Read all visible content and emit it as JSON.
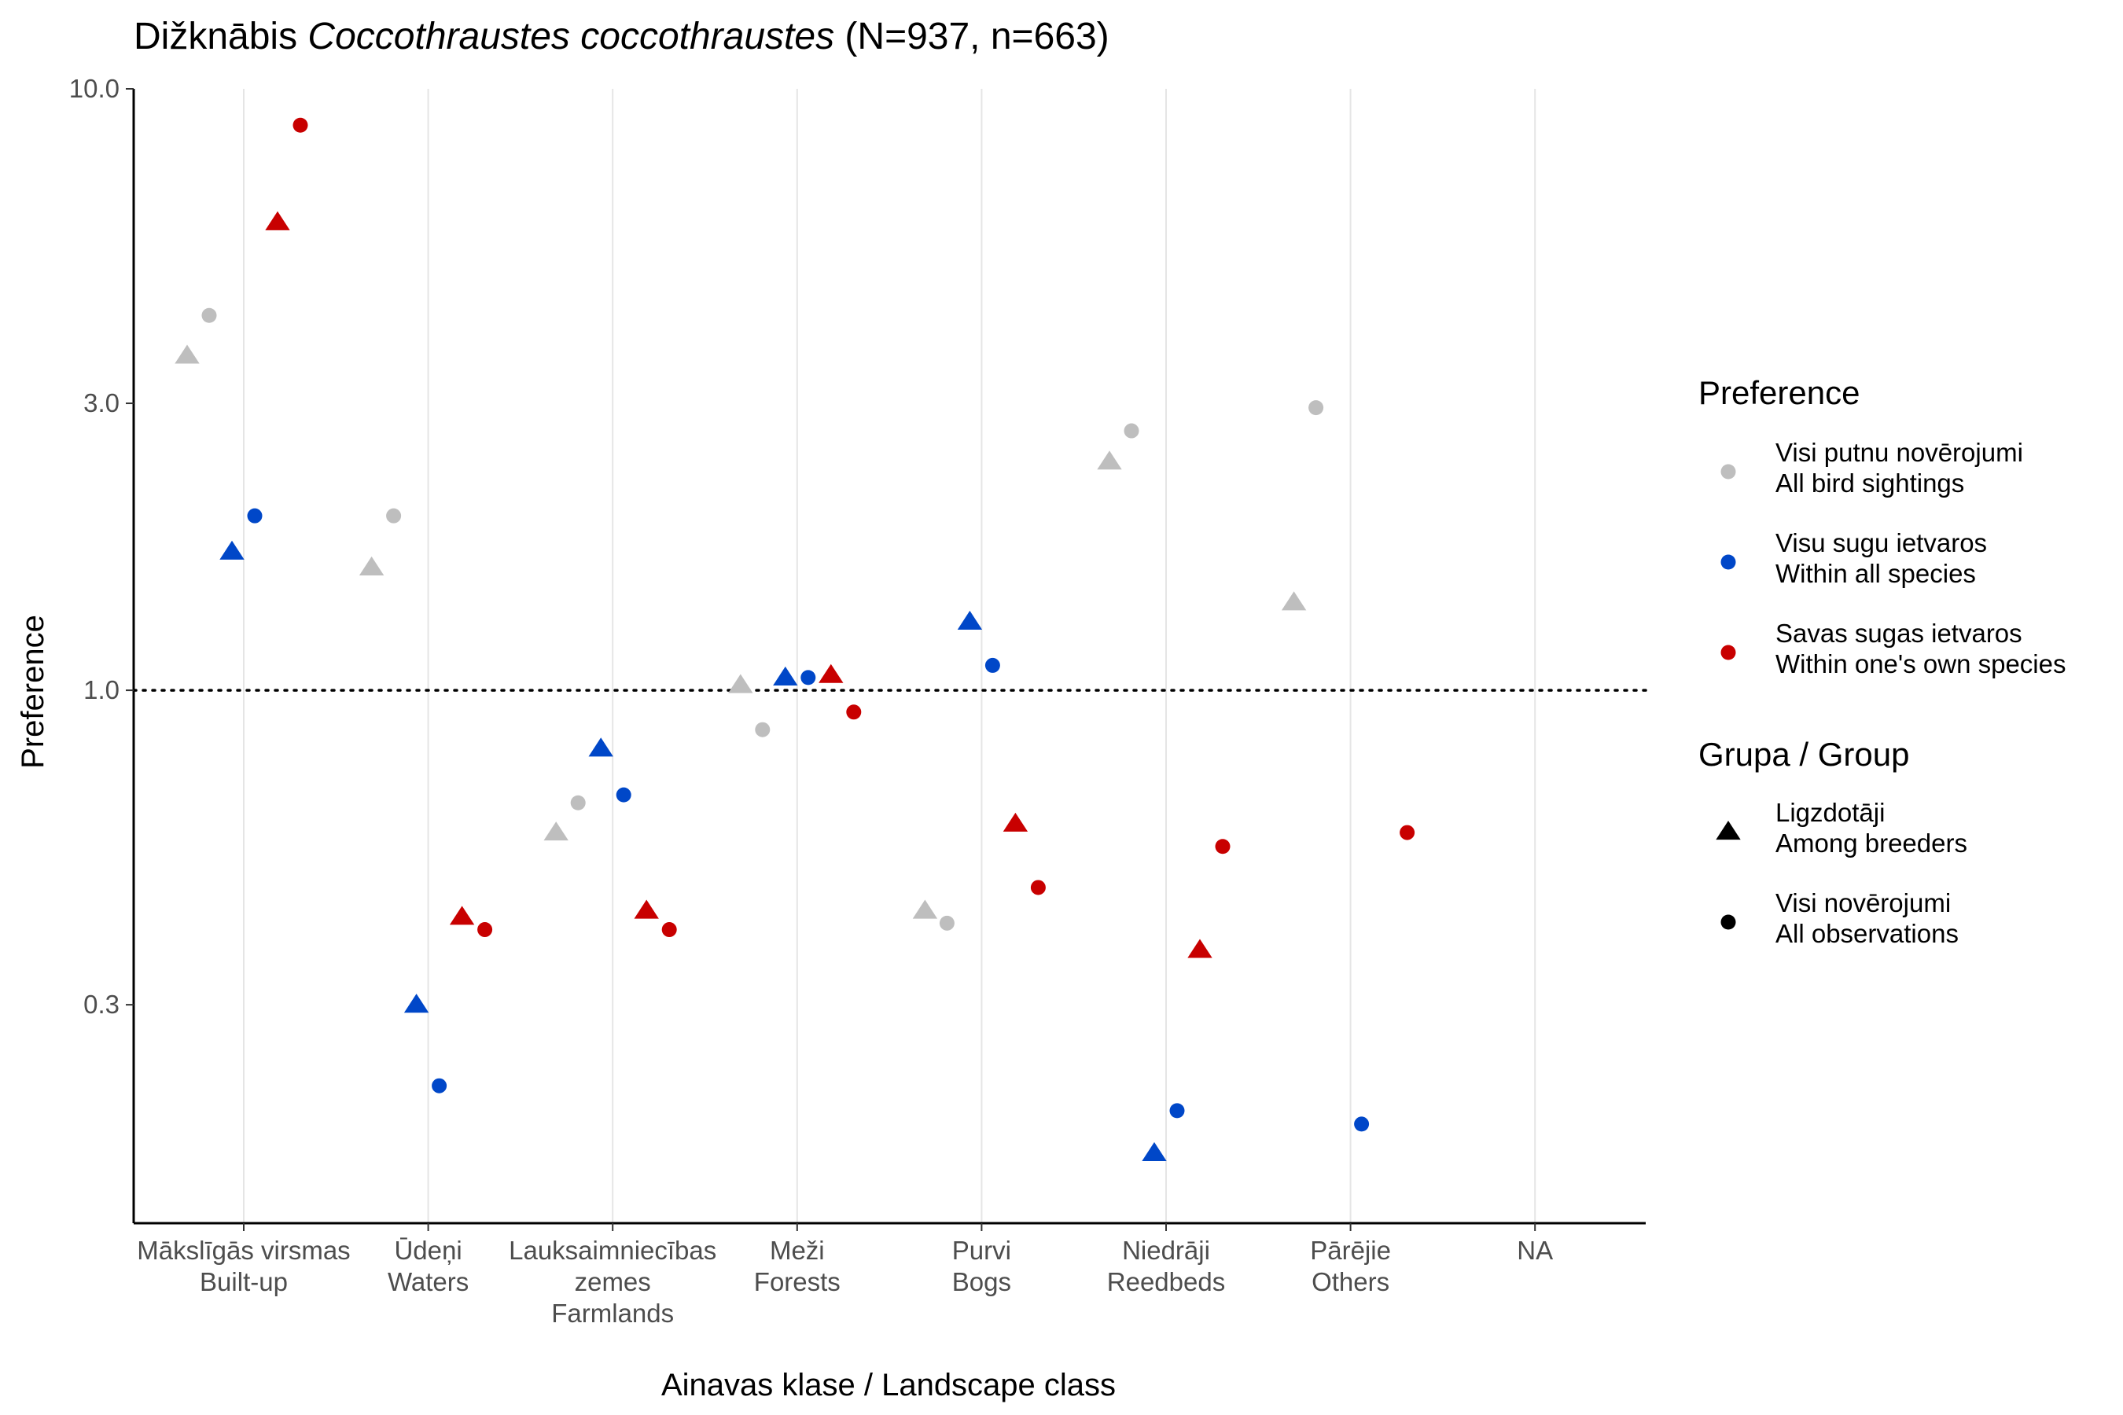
{
  "chart_data": {
    "type": "scatter",
    "title": {
      "prefix": "Dižknābis ",
      "italic": "Coccothraustes coccothraustes",
      "suffix": " (N=937, n=663)"
    },
    "xlabel": "Ainavas klase / Landscape class",
    "ylabel": "Preference",
    "y_scale": "log",
    "ylim": [
      0.13,
      10
    ],
    "y_ticks": [
      {
        "value": 0.3,
        "label": "0.3"
      },
      {
        "value": 1.0,
        "label": "1.0"
      },
      {
        "value": 3.0,
        "label": "3.0"
      },
      {
        "value": 10.0,
        "label": "10.0"
      }
    ],
    "reference_line": 1.0,
    "grid": "vertical major only",
    "categories": [
      [
        "Mākslīgās virsmas",
        "Built-up"
      ],
      [
        "Ūdeņi",
        "Waters"
      ],
      [
        "Lauksaimniecības",
        "zemes",
        "Farmlands"
      ],
      [
        "Meži",
        "Forests"
      ],
      [
        "Purvi",
        "Bogs"
      ],
      [
        "Niedrāji",
        "Reedbeds"
      ],
      [
        "Pārējie",
        "Others"
      ],
      [
        "NA"
      ]
    ],
    "colors": {
      "all_sightings": "#bebebe",
      "all_species": "#0047c8",
      "own_species": "#c80000"
    },
    "series": [
      {
        "preference": "all_sightings",
        "group": "breeders",
        "shape": "triangle",
        "values": [
          3.6,
          1.6,
          0.58,
          1.02,
          0.43,
          2.4,
          1.4,
          null
        ]
      },
      {
        "preference": "all_sightings",
        "group": "all",
        "shape": "circle",
        "values": [
          4.2,
          1.95,
          0.65,
          0.86,
          0.41,
          2.7,
          2.95,
          null
        ]
      },
      {
        "preference": "all_species",
        "group": "breeders",
        "shape": "triangle",
        "values": [
          1.7,
          0.3,
          0.8,
          1.05,
          1.3,
          0.17,
          null,
          null
        ]
      },
      {
        "preference": "all_species",
        "group": "all",
        "shape": "circle",
        "values": [
          1.95,
          0.22,
          0.67,
          1.05,
          1.1,
          0.2,
          0.19,
          null
        ]
      },
      {
        "preference": "own_species",
        "group": "breeders",
        "shape": "triangle",
        "values": [
          6.0,
          0.42,
          0.43,
          1.06,
          0.6,
          0.37,
          null,
          null
        ]
      },
      {
        "preference": "own_species",
        "group": "all",
        "shape": "circle",
        "values": [
          8.7,
          0.4,
          0.4,
          0.92,
          0.47,
          0.55,
          0.58,
          null
        ]
      }
    ],
    "legend": {
      "placement": "right",
      "preference_title": "Preference",
      "preference_items": [
        {
          "key": "all_sightings",
          "line1": "Visi putnu novērojumi",
          "line2": "All bird sightings"
        },
        {
          "key": "all_species",
          "line1": "Visu sugu ietvaros",
          "line2": "Within all species"
        },
        {
          "key": "own_species",
          "line1": "Savas sugas ietvaros",
          "line2": "Within one's own species"
        }
      ],
      "group_title": "Grupa / Group",
      "group_items": [
        {
          "shape": "triangle",
          "line1": "Ligzdotāji",
          "line2": "Among breeders"
        },
        {
          "shape": "circle",
          "line1": "Visi novērojumi",
          "line2": "All observations"
        }
      ]
    }
  }
}
